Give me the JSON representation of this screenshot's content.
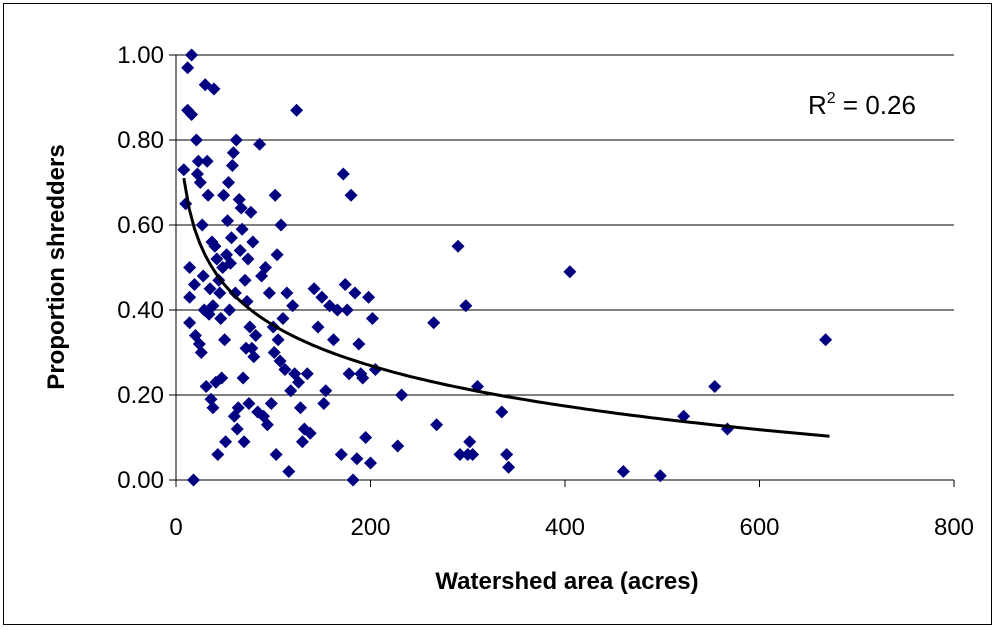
{
  "chart_data": {
    "type": "scatter",
    "xlabel": "Watershed area (acres)",
    "ylabel": "Proportion shredders",
    "annotation": {
      "base": "R",
      "sup": "2",
      "rest": " = 0.26"
    },
    "xlim": [
      0,
      800
    ],
    "ylim": [
      0,
      1
    ],
    "x_ticks": [
      "0",
      "200",
      "400",
      "600",
      "800"
    ],
    "y_ticks": [
      "0.00",
      "0.20",
      "0.40",
      "0.60",
      "0.80",
      "1.00"
    ],
    "grid": "horizontal",
    "colors": {
      "points": "#000080",
      "trend": "#000000"
    },
    "trendline": {
      "type": "logarithmic",
      "a": 0.9955,
      "b": -0.1371,
      "x_range": [
        8,
        672
      ]
    },
    "points": [
      [
        8,
        0.73
      ],
      [
        10,
        0.65
      ],
      [
        12,
        0.97
      ],
      [
        12,
        0.87
      ],
      [
        14,
        0.5
      ],
      [
        14,
        0.43
      ],
      [
        14,
        0.37
      ],
      [
        16,
        1.0
      ],
      [
        16,
        0.86
      ],
      [
        18,
        0.0
      ],
      [
        19,
        0.46
      ],
      [
        20,
        0.34
      ],
      [
        21,
        0.8
      ],
      [
        22,
        0.72
      ],
      [
        23,
        0.75
      ],
      [
        24,
        0.32
      ],
      [
        25,
        0.7
      ],
      [
        26,
        0.3
      ],
      [
        27,
        0.6
      ],
      [
        28,
        0.48
      ],
      [
        29,
        0.4
      ],
      [
        30,
        0.93
      ],
      [
        31,
        0.22
      ],
      [
        32,
        0.75
      ],
      [
        33,
        0.67
      ],
      [
        34,
        0.39
      ],
      [
        35,
        0.45
      ],
      [
        36,
        0.19
      ],
      [
        37,
        0.56
      ],
      [
        38,
        0.41
      ],
      [
        38,
        0.17
      ],
      [
        39,
        0.92
      ],
      [
        40,
        0.55
      ],
      [
        41,
        0.23
      ],
      [
        42,
        0.52
      ],
      [
        43,
        0.06
      ],
      [
        44,
        0.47
      ],
      [
        45,
        0.44
      ],
      [
        46,
        0.38
      ],
      [
        47,
        0.24
      ],
      [
        48,
        0.5
      ],
      [
        49,
        0.67
      ],
      [
        50,
        0.33
      ],
      [
        51,
        0.09
      ],
      [
        52,
        0.53
      ],
      [
        53,
        0.61
      ],
      [
        54,
        0.7
      ],
      [
        55,
        0.4
      ],
      [
        56,
        0.51
      ],
      [
        57,
        0.57
      ],
      [
        58,
        0.74
      ],
      [
        59,
        0.77
      ],
      [
        60,
        0.15
      ],
      [
        61,
        0.44
      ],
      [
        62,
        0.8
      ],
      [
        63,
        0.12
      ],
      [
        64,
        0.17
      ],
      [
        65,
        0.66
      ],
      [
        66,
        0.54
      ],
      [
        67,
        0.64
      ],
      [
        68,
        0.59
      ],
      [
        69,
        0.24
      ],
      [
        70,
        0.09
      ],
      [
        71,
        0.47
      ],
      [
        72,
        0.31
      ],
      [
        73,
        0.42
      ],
      [
        74,
        0.52
      ],
      [
        75,
        0.18
      ],
      [
        76,
        0.36
      ],
      [
        77,
        0.63
      ],
      [
        78,
        0.31
      ],
      [
        79,
        0.56
      ],
      [
        80,
        0.29
      ],
      [
        82,
        0.34
      ],
      [
        84,
        0.16
      ],
      [
        86,
        0.79
      ],
      [
        88,
        0.48
      ],
      [
        90,
        0.15
      ],
      [
        92,
        0.5
      ],
      [
        94,
        0.13
      ],
      [
        96,
        0.44
      ],
      [
        98,
        0.18
      ],
      [
        100,
        0.36
      ],
      [
        101,
        0.3
      ],
      [
        102,
        0.67
      ],
      [
        103,
        0.06
      ],
      [
        104,
        0.53
      ],
      [
        105,
        0.33
      ],
      [
        107,
        0.28
      ],
      [
        108,
        0.6
      ],
      [
        110,
        0.38
      ],
      [
        112,
        0.26
      ],
      [
        114,
        0.44
      ],
      [
        116,
        0.02
      ],
      [
        118,
        0.21
      ],
      [
        120,
        0.41
      ],
      [
        122,
        0.25
      ],
      [
        124,
        0.87
      ],
      [
        126,
        0.23
      ],
      [
        128,
        0.17
      ],
      [
        130,
        0.09
      ],
      [
        132,
        0.12
      ],
      [
        135,
        0.25
      ],
      [
        138,
        0.11
      ],
      [
        142,
        0.45
      ],
      [
        146,
        0.36
      ],
      [
        150,
        0.43
      ],
      [
        152,
        0.18
      ],
      [
        154,
        0.21
      ],
      [
        158,
        0.41
      ],
      [
        162,
        0.33
      ],
      [
        166,
        0.4
      ],
      [
        170,
        0.06
      ],
      [
        172,
        0.72
      ],
      [
        174,
        0.46
      ],
      [
        176,
        0.4
      ],
      [
        178,
        0.25
      ],
      [
        180,
        0.67
      ],
      [
        182,
        0.0
      ],
      [
        184,
        0.44
      ],
      [
        186,
        0.05
      ],
      [
        188,
        0.32
      ],
      [
        190,
        0.25
      ],
      [
        192,
        0.24
      ],
      [
        195,
        0.1
      ],
      [
        198,
        0.43
      ],
      [
        200,
        0.04
      ],
      [
        202,
        0.38
      ],
      [
        205,
        0.26
      ],
      [
        228,
        0.08
      ],
      [
        232,
        0.2
      ],
      [
        265,
        0.37
      ],
      [
        268,
        0.13
      ],
      [
        290,
        0.55
      ],
      [
        292,
        0.06
      ],
      [
        298,
        0.41
      ],
      [
        300,
        0.06
      ],
      [
        302,
        0.09
      ],
      [
        305,
        0.06
      ],
      [
        310,
        0.22
      ],
      [
        335,
        0.16
      ],
      [
        340,
        0.06
      ],
      [
        342,
        0.03
      ],
      [
        405,
        0.49
      ],
      [
        460,
        0.02
      ],
      [
        498,
        0.01
      ],
      [
        522,
        0.15
      ],
      [
        554,
        0.22
      ],
      [
        567,
        0.12
      ],
      [
        668,
        0.33
      ]
    ]
  }
}
